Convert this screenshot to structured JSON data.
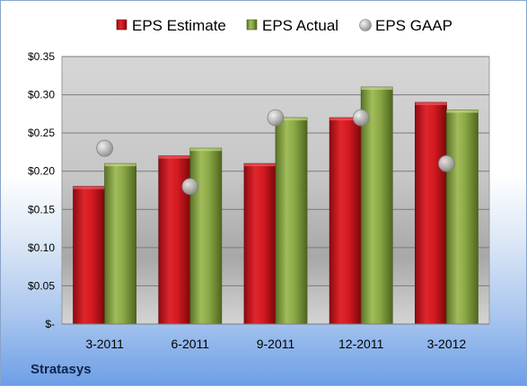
{
  "chart_data": {
    "type": "bar",
    "categories": [
      "3-2011",
      "6-2011",
      "9-2011",
      "12-2011",
      "3-2012"
    ],
    "series": [
      {
        "name": "EPS Estimate",
        "kind": "bar",
        "color": "#c4121b",
        "values": [
          0.18,
          0.22,
          0.21,
          0.27,
          0.29
        ]
      },
      {
        "name": "EPS Actual",
        "kind": "bar",
        "color": "#7f9a3c",
        "values": [
          0.21,
          0.23,
          0.27,
          0.31,
          0.28
        ]
      },
      {
        "name": "EPS GAAP",
        "kind": "scatter",
        "color": "#b4b4b4",
        "values": [
          0.23,
          0.18,
          0.27,
          0.27,
          0.21
        ]
      }
    ],
    "ylim": [
      0,
      0.35
    ],
    "yticks": [
      0,
      0.05,
      0.1,
      0.15,
      0.2,
      0.25,
      0.3,
      0.35
    ],
    "ytick_labels": [
      "$-",
      "$0.05",
      "$0.10",
      "$0.15",
      "$0.20",
      "$0.25",
      "$0.30",
      "$0.35"
    ],
    "grid": true,
    "legend_position": "top"
  },
  "footer": {
    "company": "Stratasys"
  }
}
